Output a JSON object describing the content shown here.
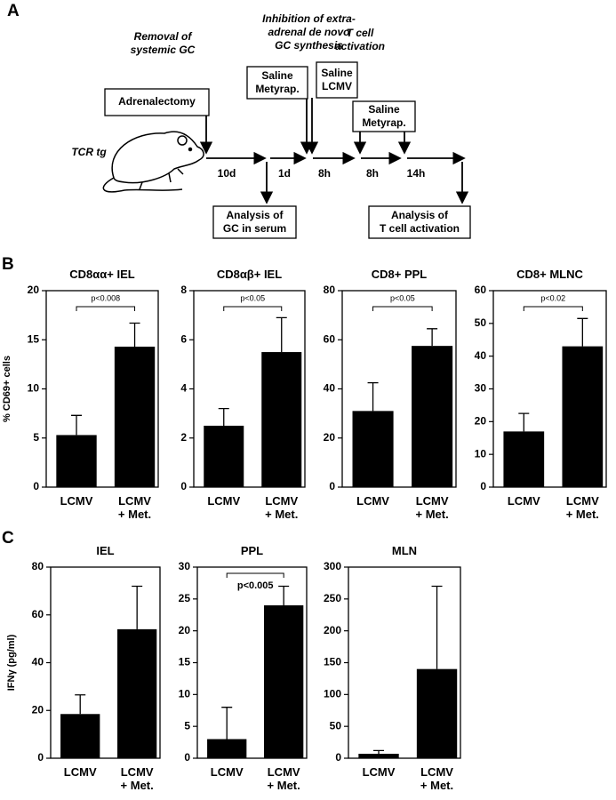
{
  "panel_labels": [
    "A",
    "B",
    "C"
  ],
  "diagram": {
    "phases": [
      "Removal of\nsystemic GC",
      "Inhibition of extra-\nadrenal de novo\nGC synthesis",
      "T cell\nactivation"
    ],
    "boxes": [
      "Adrenalectomy",
      "Saline\nMetyrap.",
      "Saline\nLCMV",
      "Saline\nMetyrap.",
      "Analysis of\nGC in serum",
      "Analysis of\nT cell activation"
    ],
    "animal": "TCR tg",
    "durations": [
      "10d",
      "1d",
      "8h",
      "8h",
      "14h"
    ]
  },
  "chart_data": [
    {
      "type": "bar",
      "title": "CD8αα+ IEL",
      "y_label": "% CD69+ cells",
      "categories": [
        "LCMV",
        "LCMV\n+ Met."
      ],
      "values": [
        5.3,
        14.3
      ],
      "errors": [
        2.0,
        2.4
      ],
      "color": "#000000",
      "ylim": [
        0,
        20
      ],
      "yticks": [
        0,
        5,
        10,
        15,
        20
      ],
      "significance": "p<0.008"
    },
    {
      "type": "bar",
      "title": "CD8αβ+ IEL",
      "categories": [
        "LCMV",
        "LCMV\n+ Met."
      ],
      "values": [
        2.5,
        5.5
      ],
      "errors": [
        0.7,
        1.4
      ],
      "color": "#000000",
      "ylim": [
        0,
        8
      ],
      "yticks": [
        0,
        2,
        4,
        6,
        8
      ],
      "significance": "p<0.05"
    },
    {
      "type": "bar",
      "title": "CD8+ PPL",
      "categories": [
        "LCMV",
        "LCMV\n+ Met."
      ],
      "values": [
        31,
        57.5
      ],
      "errors": [
        11.5,
        7
      ],
      "color": "#000000",
      "ylim": [
        0,
        80
      ],
      "yticks": [
        0,
        20,
        40,
        60,
        80
      ],
      "significance": "p<0.05"
    },
    {
      "type": "bar",
      "title": "CD8+ MLNC",
      "categories": [
        "LCMV",
        "LCMV\n+ Met."
      ],
      "values": [
        17,
        43
      ],
      "errors": [
        5.5,
        8.5
      ],
      "color": "#000000",
      "ylim": [
        0,
        60
      ],
      "yticks": [
        0,
        10,
        20,
        30,
        40,
        50,
        60
      ],
      "significance": "p<0.02"
    },
    {
      "type": "bar",
      "title": "IEL",
      "y_label": "IFNγ (pg/ml)",
      "categories": [
        "LCMV",
        "LCMV\n+ Met."
      ],
      "values": [
        18.5,
        54
      ],
      "errors": [
        8,
        18
      ],
      "color": "#000000",
      "ylim": [
        0,
        80
      ],
      "yticks": [
        0,
        20,
        40,
        60,
        80
      ]
    },
    {
      "type": "bar",
      "title": "PPL",
      "categories": [
        "LCMV",
        "LCMV\n+ Met."
      ],
      "values": [
        3,
        24
      ],
      "errors": [
        5,
        3
      ],
      "color": "#000000",
      "ylim": [
        0,
        30
      ],
      "yticks": [
        0,
        5,
        10,
        15,
        20,
        25,
        30
      ],
      "significance": "p<0.005"
    },
    {
      "type": "bar",
      "title": "MLN",
      "categories": [
        "LCMV",
        "LCMV\n+ Met."
      ],
      "values": [
        7,
        140
      ],
      "errors": [
        5,
        130
      ],
      "color": "#000000",
      "ylim": [
        0,
        300
      ],
      "yticks": [
        0,
        50,
        100,
        150,
        200,
        250,
        300
      ]
    }
  ]
}
